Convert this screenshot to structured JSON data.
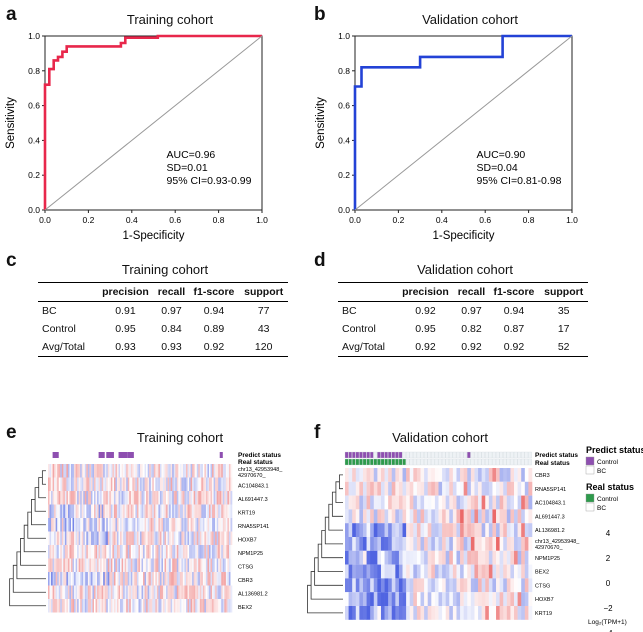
{
  "panels": {
    "a": {
      "label": "a",
      "title": "Training cohort"
    },
    "b": {
      "label": "b",
      "title": "Validation cohort"
    },
    "c": {
      "label": "c",
      "title": "Training cohort"
    },
    "d": {
      "label": "d",
      "title": "Validation cohort"
    },
    "e": {
      "label": "e",
      "title": "Training cohort"
    },
    "f": {
      "label": "f",
      "title": "Validation cohort"
    }
  },
  "chart_data": [
    {
      "type": "line",
      "title": "Training cohort",
      "xlabel": "1-Specificity",
      "ylabel": "Sensitivity",
      "xlim": [
        0,
        1
      ],
      "ylim": [
        0,
        1
      ],
      "xticks": [
        "0.0",
        "0.2",
        "0.4",
        "0.6",
        "0.8",
        "1.0"
      ],
      "yticks": [
        "0.0",
        "0.2",
        "0.4",
        "0.6",
        "0.8",
        "1.0"
      ],
      "series": [
        {
          "color": "#e8274b",
          "x": [
            0,
            0,
            0.02,
            0.02,
            0.04,
            0.04,
            0.06,
            0.06,
            0.08,
            0.08,
            0.1,
            0.1,
            0.35,
            0.35,
            0.37,
            0.37,
            0.52,
            0.52,
            1.0
          ],
          "y": [
            0,
            0.72,
            0.72,
            0.81,
            0.81,
            0.86,
            0.86,
            0.88,
            0.88,
            0.91,
            0.91,
            0.94,
            0.94,
            0.96,
            0.96,
            0.99,
            0.99,
            1.0,
            1.0
          ]
        },
        {
          "color": "#999999",
          "x": [
            0,
            1
          ],
          "y": [
            0,
            1
          ]
        }
      ],
      "annotations": [
        "AUC=0.96",
        "SD=0.01",
        "95% CI=0.93-0.99"
      ]
    },
    {
      "type": "line",
      "title": "Validation cohort",
      "xlabel": "1-Specificity",
      "ylabel": "Sensitivity",
      "xlim": [
        0,
        1
      ],
      "ylim": [
        0,
        1
      ],
      "xticks": [
        "0.0",
        "0.2",
        "0.4",
        "0.6",
        "0.8",
        "1.0"
      ],
      "yticks": [
        "0.0",
        "0.2",
        "0.4",
        "0.6",
        "0.8",
        "1.0"
      ],
      "series": [
        {
          "color": "#2342d6",
          "x": [
            0,
            0,
            0.03,
            0.03,
            0.3,
            0.3,
            0.68,
            0.68,
            1.0
          ],
          "y": [
            0,
            0.71,
            0.71,
            0.82,
            0.82,
            0.88,
            0.88,
            1.0,
            1.0
          ]
        },
        {
          "color": "#999999",
          "x": [
            0,
            1
          ],
          "y": [
            0,
            1
          ]
        }
      ],
      "annotations": [
        "AUC=0.90",
        "SD=0.04",
        "95% CI=0.81-0.98"
      ]
    },
    {
      "type": "table",
      "title": "Training cohort",
      "columns": [
        "",
        "precision",
        "recall",
        "f1-score",
        "support"
      ],
      "rows": [
        [
          "BC",
          "0.91",
          "0.97",
          "0.94",
          "77"
        ],
        [
          "Control",
          "0.95",
          "0.84",
          "0.89",
          "43"
        ],
        [
          "Avg/Total",
          "0.93",
          "0.93",
          "0.92",
          "120"
        ]
      ]
    },
    {
      "type": "table",
      "title": "Validation cohort",
      "columns": [
        "",
        "precision",
        "recall",
        "f1-score",
        "support"
      ],
      "rows": [
        [
          "BC",
          "0.92",
          "0.97",
          "0.94",
          "35"
        ],
        [
          "Control",
          "0.95",
          "0.82",
          "0.87",
          "17"
        ],
        [
          "Avg/Total",
          "0.92",
          "0.92",
          "0.92",
          "52"
        ]
      ]
    },
    {
      "type": "heatmap",
      "title": "Training cohort",
      "annotation_rows": [
        "Predict status",
        "Real status"
      ],
      "genes": [
        "chr13_42953948_ 42970670_",
        "AC104843.1",
        "AL691447.3",
        "KRT19",
        "RNA5SP141",
        "HOXB7",
        "NPM1P25",
        "CTSG",
        "CBR3",
        "AL136981.2",
        "BEX2"
      ]
    },
    {
      "type": "heatmap",
      "title": "Validation cohort",
      "annotation_rows": [
        "Predict status",
        "Real status"
      ],
      "genes": [
        "CBR3",
        "RNA5SP141",
        "AC104843.1",
        "AL691447.3",
        "AL136981.2",
        "chr13_42953948_ 42970670_",
        "NPM1P25",
        "BEX2",
        "CTSG",
        "HOXB7",
        "KRT19"
      ],
      "legend": {
        "predict_title": "Predict status",
        "predict_items": [
          {
            "label": "Control",
            "color": "#8e4fb0"
          },
          {
            "label": "BC",
            "color": "#ffffff"
          }
        ],
        "real_title": "Real status",
        "real_items": [
          {
            "label": "Control",
            "color": "#2e9a4c"
          },
          {
            "label": "BC",
            "color": "#ffffff"
          }
        ],
        "scale_ticks": [
          "4",
          "2",
          "0",
          "−2",
          "−4"
        ],
        "scale_label": "Log₂(TPM+1)"
      }
    }
  ]
}
